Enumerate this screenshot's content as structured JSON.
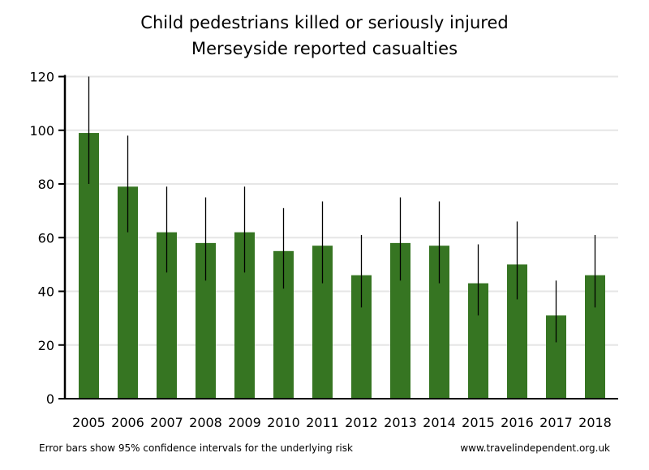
{
  "chart_data": {
    "type": "bar",
    "title": "Child pedestrians killed or seriously injured",
    "subtitle": "Merseyside reported casualties",
    "xlabel": "",
    "ylabel": "",
    "ylim": [
      0,
      120
    ],
    "yticks": [
      0,
      20,
      40,
      60,
      80,
      100,
      120
    ],
    "grid": true,
    "categories": [
      "2005",
      "2006",
      "2007",
      "2008",
      "2009",
      "2010",
      "2011",
      "2012",
      "2013",
      "2014",
      "2015",
      "2016",
      "2017",
      "2018"
    ],
    "values": [
      99,
      79,
      62,
      58,
      62,
      55,
      57,
      46,
      58,
      57,
      43,
      50,
      31,
      46
    ],
    "error_low": [
      80,
      62,
      47,
      44,
      47,
      41,
      43,
      34,
      44,
      43,
      31,
      37,
      21,
      34
    ],
    "error_high": [
      120,
      98,
      79,
      75,
      79,
      71,
      73.5,
      61,
      75,
      73.5,
      57.5,
      66,
      44,
      61
    ],
    "bar_color": "#367522",
    "grid_color": "#e6e6e6"
  },
  "footer": {
    "note": "Error bars show 95% confidence intervals for the underlying risk",
    "source": "www.travelindependent.org.uk"
  }
}
